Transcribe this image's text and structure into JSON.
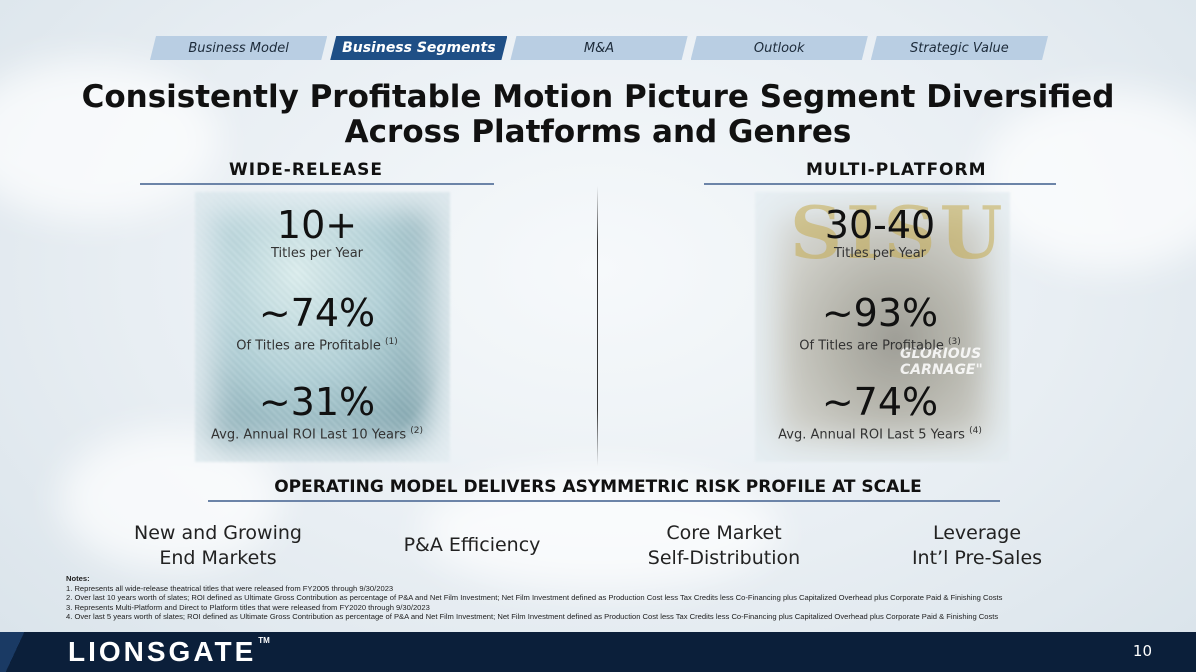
{
  "nav": {
    "tabs": [
      {
        "label": "Business Model",
        "active": false
      },
      {
        "label": "Business Segments",
        "active": true
      },
      {
        "label": "M&A",
        "active": false
      },
      {
        "label": "Outlook",
        "active": false
      },
      {
        "label": "Strategic Value",
        "active": false
      }
    ]
  },
  "title": {
    "line1": "Consistently Profitable Motion Picture Segment Diversified",
    "line2": "Across Platforms and Genres"
  },
  "wide_release": {
    "heading": "WIDE-RELEASE",
    "stats": [
      {
        "value": "10+",
        "label": "Titles per Year",
        "note": ""
      },
      {
        "value": "~74%",
        "label": "Of Titles are Profitable",
        "note": "(1)"
      },
      {
        "value": "~31%",
        "label": "Avg. Annual ROI Last 10 Years",
        "note": "(2)"
      }
    ]
  },
  "multi_platform": {
    "heading": "MULTI-PLATFORM",
    "poster_title": "SISU",
    "poster_tagline": "GLORIOUS CARNAGE\"",
    "stats": [
      {
        "value": "30-40",
        "label": "Titles per Year",
        "note": ""
      },
      {
        "value": "~93%",
        "label": "Of Titles are Profitable",
        "note": "(3)"
      },
      {
        "value": "~74%",
        "label": "Avg. Annual ROI Last 5 Years",
        "note": "(4)"
      }
    ]
  },
  "operating": {
    "heading": "OPERATING MODEL DELIVERS ASYMMETRIC RISK PROFILE AT SCALE",
    "pillars": [
      {
        "line1": "New and Growing",
        "line2": "End Markets"
      },
      {
        "line1": "P&A Efficiency",
        "line2": ""
      },
      {
        "line1": "Core Market",
        "line2": "Self-Distribution"
      },
      {
        "line1": "Leverage",
        "line2": "Int’l Pre-Sales"
      }
    ]
  },
  "notes": {
    "heading": "Notes:",
    "items": [
      "1. Represents all wide-release theatrical titles that were released from FY2005 through 9/30/2023",
      "2. Over last 10 years worth of slates; ROI defined as Ultimate Gross Contribution as percentage of P&A and Net Film Investment; Net Film Investment defined as Production Cost less Tax Credits less Co-Financing plus Capitalized Overhead plus Corporate Paid & Finishing Costs",
      "3. Represents Multi-Platform and Direct to Platform titles that were released from FY2020 through 9/30/2023",
      "4. Over last 5 years worth of slates; ROI defined as Ultimate Gross Contribution as percentage of P&A and Net Film Investment; Net Film Investment defined as Production Cost less Tax Credits less Co-Financing plus Capitalized Overhead plus Corporate Paid & Finishing Costs"
    ]
  },
  "footer": {
    "logo": "LIONSGATE",
    "tm": "TM",
    "page_number": "10"
  }
}
